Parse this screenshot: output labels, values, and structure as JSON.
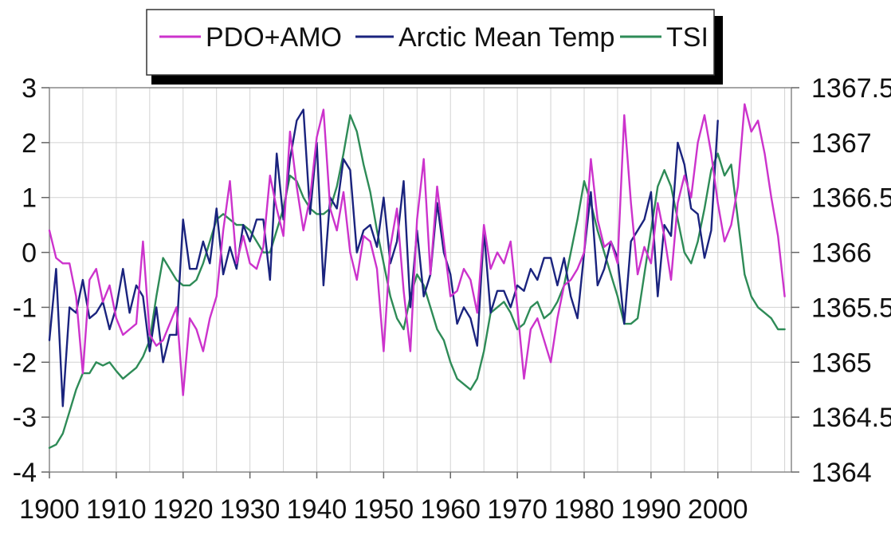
{
  "chart_data": {
    "type": "line",
    "title": "",
    "xlabel": "",
    "ylabel": "",
    "y2label": "",
    "grid": true,
    "legend_position": "top",
    "x_ticks": [
      "1900",
      "1910",
      "1920",
      "1930",
      "1940",
      "1950",
      "1960",
      "1970",
      "1980",
      "1990",
      "2000"
    ],
    "y_left_ticks": [
      "3",
      "2",
      "1",
      "0",
      "-1",
      "-2",
      "-3",
      "-4"
    ],
    "y_right_ticks": [
      "1367.5",
      "1367",
      "1366.5",
      "1366",
      "1365.5",
      "1365",
      "1364.5",
      "1364"
    ],
    "xlim": [
      1900,
      2011
    ],
    "ylim_left": [
      -4,
      3
    ],
    "ylim_right": [
      1364,
      1367.5
    ],
    "series": [
      {
        "name": "PDO+AMO",
        "axis": "left",
        "color": "#cc33cc",
        "x": [
          1900,
          1901,
          1902,
          1903,
          1904,
          1905,
          1906,
          1907,
          1908,
          1909,
          1910,
          1911,
          1912,
          1913,
          1914,
          1915,
          1916,
          1917,
          1918,
          1919,
          1920,
          1921,
          1922,
          1923,
          1924,
          1925,
          1926,
          1927,
          1928,
          1929,
          1930,
          1931,
          1932,
          1933,
          1934,
          1935,
          1936,
          1937,
          1938,
          1939,
          1940,
          1941,
          1942,
          1943,
          1944,
          1945,
          1946,
          1947,
          1948,
          1949,
          1950,
          1951,
          1952,
          1953,
          1954,
          1955,
          1956,
          1957,
          1958,
          1959,
          1960,
          1961,
          1962,
          1963,
          1964,
          1965,
          1966,
          1967,
          1968,
          1969,
          1970,
          1971,
          1972,
          1973,
          1974,
          1975,
          1976,
          1977,
          1978,
          1979,
          1980,
          1981,
          1982,
          1983,
          1984,
          1985,
          1986,
          1987,
          1988,
          1989,
          1990,
          1991,
          1992,
          1993,
          1994,
          1995,
          1996,
          1997,
          1998,
          1999,
          2000,
          2001,
          2002,
          2003,
          2004,
          2005,
          2006,
          2007,
          2008,
          2009,
          2010
        ],
        "y": [
          0.4,
          -0.1,
          -0.2,
          -0.2,
          -0.8,
          -2.2,
          -0.5,
          -0.3,
          -0.9,
          -0.6,
          -1.2,
          -1.5,
          -1.4,
          -1.3,
          0.2,
          -1.5,
          -1.7,
          -1.6,
          -1.3,
          -1.0,
          -2.6,
          -1.2,
          -1.4,
          -1.8,
          -1.2,
          -0.8,
          0.4,
          1.3,
          -0.2,
          0.3,
          -0.2,
          -0.3,
          0.1,
          1.4,
          0.8,
          0.3,
          2.2,
          1.2,
          0.4,
          1.0,
          2.1,
          2.6,
          0.8,
          0.4,
          1.1,
          0.0,
          -0.5,
          0.3,
          0.2,
          -0.3,
          -1.8,
          0.1,
          0.8,
          -0.7,
          -1.8,
          0.6,
          1.7,
          -0.4,
          1.2,
          0.2,
          -0.8,
          -0.7,
          -0.3,
          -0.5,
          -1.1,
          0.5,
          -0.3,
          0.0,
          -0.2,
          0.2,
          -1.0,
          -2.3,
          -1.4,
          -1.2,
          -1.6,
          -2.0,
          -1.2,
          -0.6,
          -0.5,
          -0.3,
          0.0,
          1.7,
          0.6,
          0.1,
          0.2,
          -0.2,
          2.5,
          0.9,
          -0.4,
          0.1,
          -0.2,
          0.9,
          0.3,
          -0.5,
          0.9,
          1.4,
          1.0,
          2.0,
          2.5,
          1.8,
          0.9,
          0.2,
          0.5,
          1.2,
          2.7,
          2.2,
          2.4,
          1.8,
          1.0,
          0.3,
          -0.8
        ]
      },
      {
        "name": "Arctic Mean Temp",
        "axis": "left",
        "color": "#1a237e",
        "x": [
          1900,
          1901,
          1902,
          1903,
          1904,
          1905,
          1906,
          1907,
          1908,
          1909,
          1910,
          1911,
          1912,
          1913,
          1914,
          1915,
          1916,
          1917,
          1918,
          1919,
          1920,
          1921,
          1922,
          1923,
          1924,
          1925,
          1926,
          1927,
          1928,
          1929,
          1930,
          1931,
          1932,
          1933,
          1934,
          1935,
          1936,
          1937,
          1938,
          1939,
          1940,
          1941,
          1942,
          1943,
          1944,
          1945,
          1946,
          1947,
          1948,
          1949,
          1950,
          1951,
          1952,
          1953,
          1954,
          1955,
          1956,
          1957,
          1958,
          1959,
          1960,
          1961,
          1962,
          1963,
          1964,
          1965,
          1966,
          1967,
          1968,
          1969,
          1970,
          1971,
          1972,
          1973,
          1974,
          1975,
          1976,
          1977,
          1978,
          1979,
          1980,
          1981,
          1982,
          1983,
          1984,
          1985,
          1986,
          1987,
          1988,
          1989,
          1990,
          1991,
          1992,
          1993,
          1994,
          1995,
          1996,
          1997,
          1998,
          1999,
          2000
        ],
        "y": [
          -1.6,
          -0.3,
          -2.8,
          -1.0,
          -1.1,
          -0.5,
          -1.2,
          -1.1,
          -0.9,
          -1.4,
          -1.0,
          -0.3,
          -1.1,
          -0.6,
          -0.8,
          -1.8,
          -1.0,
          -2.0,
          -1.5,
          -1.5,
          0.6,
          -0.3,
          -0.3,
          0.2,
          -0.2,
          0.8,
          -0.4,
          0.1,
          -0.3,
          0.5,
          0.2,
          0.6,
          0.6,
          -0.5,
          1.8,
          0.6,
          1.7,
          2.4,
          2.6,
          0.7,
          2.0,
          -0.6,
          1.0,
          0.8,
          1.7,
          1.5,
          0.0,
          0.4,
          0.5,
          0.1,
          1.0,
          -0.2,
          0.2,
          1.3,
          -1.0,
          0.4,
          -0.8,
          -0.4,
          0.9,
          0.0,
          -0.4,
          -1.3,
          -1.0,
          -1.2,
          -1.7,
          0.4,
          -1.1,
          -0.7,
          -0.7,
          -1.0,
          -0.6,
          -0.7,
          -0.3,
          -0.5,
          -0.1,
          -0.1,
          -0.6,
          -0.1,
          -0.8,
          -1.2,
          0.0,
          1.1,
          -0.6,
          -0.3,
          0.2,
          -0.1,
          -1.3,
          0.2,
          0.4,
          0.6,
          1.1,
          -0.8,
          0.5,
          0.3,
          2.0,
          1.6,
          0.8,
          0.7,
          -0.1,
          0.4,
          2.4
        ]
      },
      {
        "name": "TSI",
        "axis": "right",
        "color": "#2e8b57",
        "x": [
          1900,
          1901,
          1902,
          1903,
          1904,
          1905,
          1906,
          1907,
          1908,
          1909,
          1910,
          1911,
          1912,
          1913,
          1914,
          1915,
          1916,
          1917,
          1918,
          1919,
          1920,
          1921,
          1922,
          1923,
          1924,
          1925,
          1926,
          1927,
          1928,
          1929,
          1930,
          1931,
          1932,
          1933,
          1934,
          1935,
          1936,
          1937,
          1938,
          1939,
          1940,
          1941,
          1942,
          1943,
          1944,
          1945,
          1946,
          1947,
          1948,
          1949,
          1950,
          1951,
          1952,
          1953,
          1954,
          1955,
          1956,
          1957,
          1958,
          1959,
          1960,
          1961,
          1962,
          1963,
          1964,
          1965,
          1966,
          1967,
          1968,
          1969,
          1970,
          1971,
          1972,
          1973,
          1974,
          1975,
          1976,
          1977,
          1978,
          1979,
          1980,
          1981,
          1982,
          1983,
          1984,
          1985,
          1986,
          1987,
          1988,
          1989,
          1990,
          1991,
          1992,
          1993,
          1994,
          1995,
          1996,
          1997,
          1998,
          1999,
          2000,
          2001,
          2002,
          2003,
          2004,
          2005,
          2006,
          2007,
          2008,
          2009,
          2010
        ],
        "y": [
          1364.22,
          1364.25,
          1364.35,
          1364.55,
          1364.75,
          1364.9,
          1364.9,
          1365.0,
          1364.97,
          1365.0,
          1364.92,
          1364.85,
          1364.9,
          1364.95,
          1365.05,
          1365.2,
          1365.6,
          1365.95,
          1365.85,
          1365.75,
          1365.7,
          1365.7,
          1365.75,
          1365.9,
          1366.1,
          1366.3,
          1366.35,
          1366.3,
          1366.25,
          1366.25,
          1366.2,
          1366.1,
          1366.0,
          1366.0,
          1366.2,
          1366.4,
          1366.7,
          1366.65,
          1366.5,
          1366.4,
          1366.35,
          1366.35,
          1366.4,
          1366.6,
          1366.9,
          1367.25,
          1367.1,
          1366.8,
          1366.55,
          1366.2,
          1365.9,
          1365.6,
          1365.4,
          1365.3,
          1365.6,
          1365.8,
          1365.7,
          1365.5,
          1365.3,
          1365.2,
          1365.0,
          1364.85,
          1364.8,
          1364.75,
          1364.85,
          1365.1,
          1365.45,
          1365.5,
          1365.55,
          1365.45,
          1365.3,
          1365.35,
          1365.5,
          1365.55,
          1365.4,
          1365.45,
          1365.55,
          1365.7,
          1366.0,
          1366.3,
          1366.65,
          1366.45,
          1366.2,
          1366.0,
          1365.8,
          1365.6,
          1365.35,
          1365.35,
          1365.4,
          1365.8,
          1366.2,
          1366.6,
          1366.75,
          1366.6,
          1366.3,
          1366.0,
          1365.9,
          1366.1,
          1366.4,
          1366.75,
          1366.9,
          1366.7,
          1366.8,
          1366.3,
          1365.8,
          1365.6,
          1365.5,
          1365.45,
          1365.4,
          1365.3,
          1365.3
        ]
      }
    ]
  }
}
